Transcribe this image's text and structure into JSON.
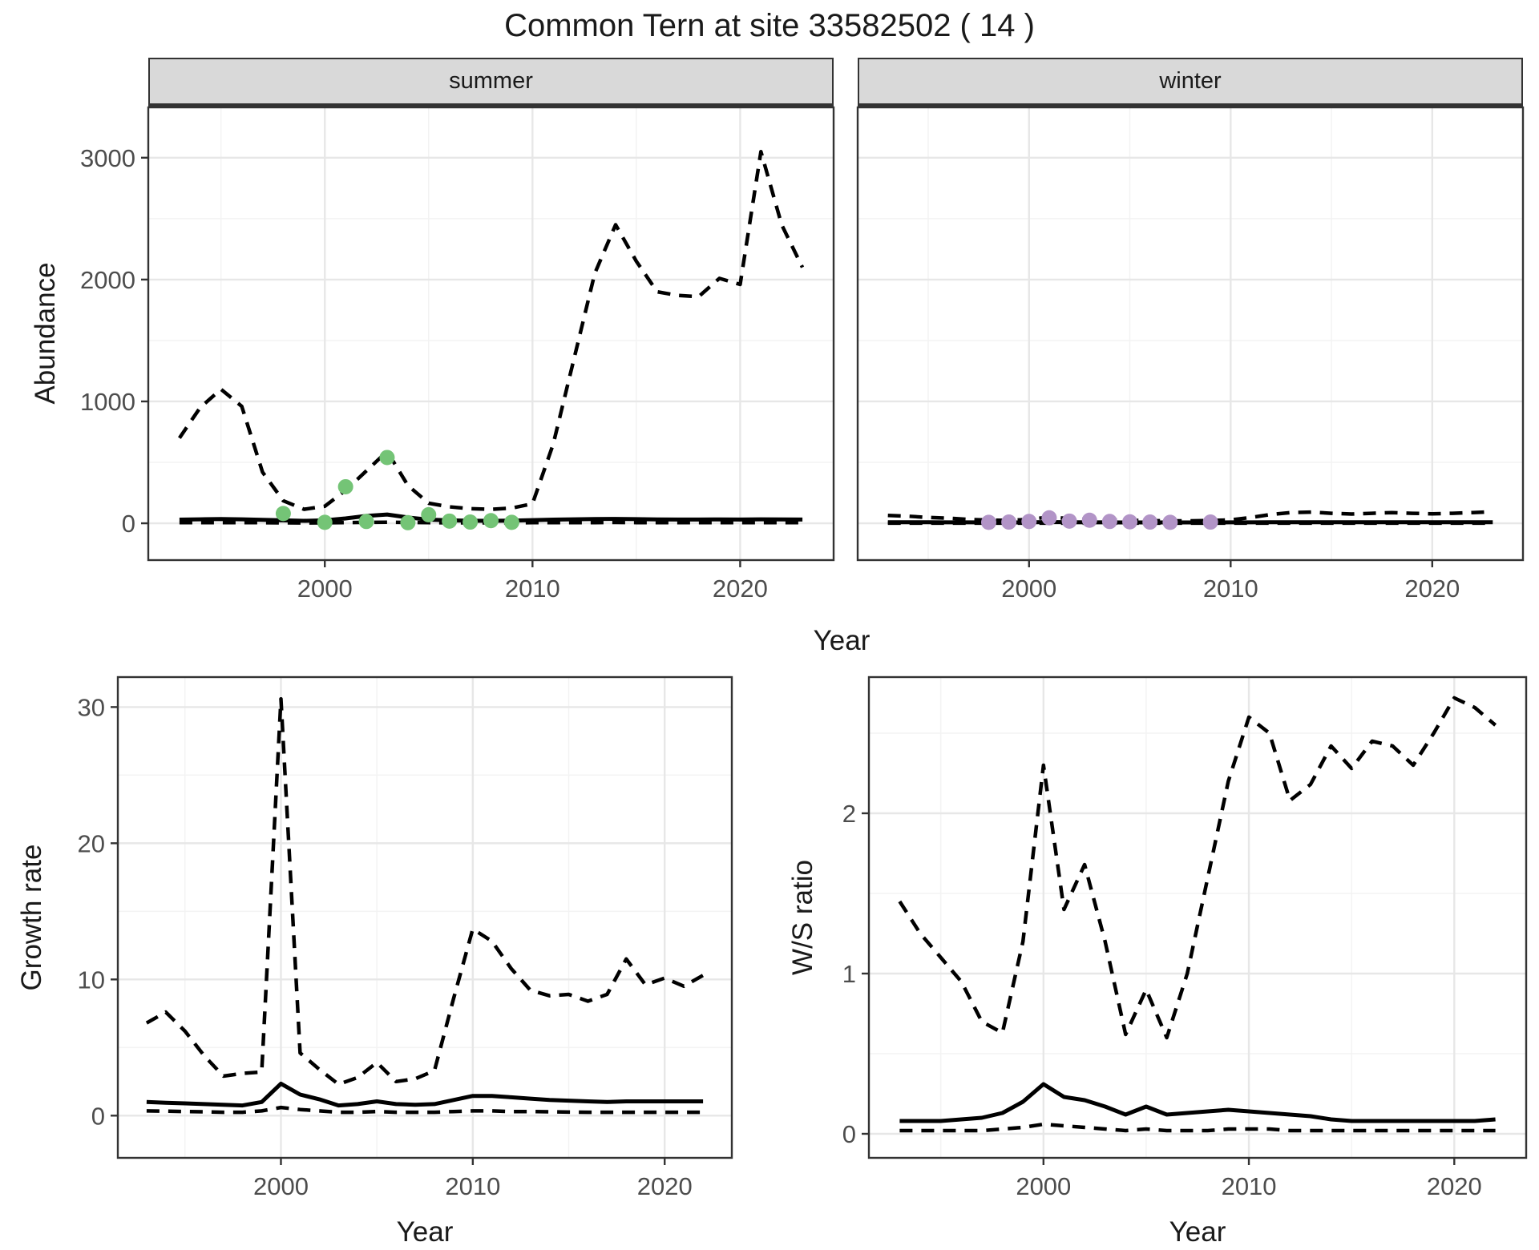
{
  "title": "Common Tern at site 33582502 ( 14 )",
  "colors": {
    "panel_bg": "#ffffff",
    "grid_major": "#e7e7e7",
    "grid_minor": "#f3f3f3",
    "panel_border": "#333333",
    "strip_bg": "#d9d9d9",
    "line": "#000000",
    "tick_text": "#4d4d4d",
    "summer_points": "#74c476",
    "winter_points": "#b294c7"
  },
  "chart_data": [
    {
      "id": "abundance-summer",
      "type": "line",
      "facet_label": "summer",
      "ylabel": "Abundance",
      "xlabel": "Year",
      "xlim": [
        1991.5,
        2024.5
      ],
      "ylim": [
        -302,
        3413
      ],
      "xtick_values": [
        2000,
        2010,
        2020
      ],
      "xtick_labels": [
        "2000",
        "2010",
        "2020"
      ],
      "ytick_values": [
        0,
        1000,
        2000,
        3000
      ],
      "ytick_labels": [
        "0",
        "1000",
        "2000",
        "3000"
      ],
      "x_minor": [
        1995,
        2005,
        2015
      ],
      "y_minor": [
        500,
        1500,
        2500
      ],
      "series": [
        {
          "name": "upper-ci",
          "type": "dashed",
          "x": [
            1993,
            1994,
            1995,
            1996,
            1997,
            1998,
            1999,
            2000,
            2001,
            2002,
            2003,
            2004,
            2005,
            2006,
            2007,
            2008,
            2009,
            2010,
            2011,
            2012,
            2013,
            2014,
            2015,
            2016,
            2017,
            2018,
            2019,
            2020,
            2021,
            2022,
            2023
          ],
          "y": [
            700,
            950,
            1100,
            960,
            420,
            185,
            115,
            140,
            270,
            430,
            590,
            310,
            165,
            135,
            120,
            115,
            125,
            160,
            650,
            1350,
            2050,
            2450,
            2150,
            1900,
            1870,
            1860,
            2010,
            1960,
            3050,
            2450,
            2100
          ]
        },
        {
          "name": "median",
          "type": "solid",
          "x": [
            1993,
            1994,
            1995,
            1996,
            1997,
            1998,
            1999,
            2000,
            2001,
            2002,
            2003,
            2004,
            2005,
            2006,
            2007,
            2008,
            2009,
            2010,
            2011,
            2012,
            2013,
            2014,
            2015,
            2016,
            2017,
            2018,
            2019,
            2020,
            2021,
            2022,
            2023
          ],
          "y": [
            30,
            33,
            35,
            33,
            28,
            24,
            20,
            24,
            40,
            60,
            72,
            48,
            30,
            24,
            21,
            20,
            22,
            26,
            30,
            33,
            35,
            36,
            34,
            32,
            31,
            31,
            32,
            31,
            33,
            32,
            31
          ]
        },
        {
          "name": "lower-ci",
          "type": "dashed",
          "x": [
            1993,
            1994,
            1995,
            1996,
            1997,
            1998,
            1999,
            2000,
            2001,
            2002,
            2003,
            2004,
            2005,
            2006,
            2007,
            2008,
            2009,
            2010,
            2011,
            2012,
            2013,
            2014,
            2015,
            2016,
            2017,
            2018,
            2019,
            2020,
            2021,
            2022,
            2023
          ],
          "y": [
            5,
            6,
            6,
            6,
            5,
            4,
            3,
            4,
            6,
            8,
            9,
            7,
            5,
            4,
            4,
            4,
            4,
            5,
            5,
            6,
            6,
            7,
            6,
            6,
            6,
            6,
            6,
            6,
            6,
            6,
            6
          ]
        },
        {
          "name": "observed-summer",
          "type": "points",
          "color": "#74c476",
          "x": [
            1998,
            2000,
            2001,
            2002,
            2003,
            2004,
            2005,
            2006,
            2007,
            2008,
            2009
          ],
          "y": [
            80,
            8,
            300,
            15,
            540,
            5,
            70,
            18,
            10,
            22,
            8
          ]
        }
      ]
    },
    {
      "id": "abundance-winter",
      "type": "line",
      "facet_label": "winter",
      "ylabel": null,
      "xlabel": "Year",
      "xlim": [
        1991.5,
        2024.5
      ],
      "ylim": [
        -302,
        3413
      ],
      "xtick_values": [
        2000,
        2010,
        2020
      ],
      "xtick_labels": [
        "2000",
        "2010",
        "2020"
      ],
      "ytick_values": [
        0,
        1000,
        2000,
        3000
      ],
      "ytick_labels": [
        "0",
        "1000",
        "2000",
        "3000"
      ],
      "x_minor": [
        1995,
        2005,
        2015
      ],
      "y_minor": [
        500,
        1500,
        2500
      ],
      "series": [
        {
          "name": "upper-ci",
          "type": "dashed",
          "x": [
            1993,
            1994,
            1995,
            1996,
            1997,
            1998,
            1999,
            2000,
            2001,
            2002,
            2003,
            2004,
            2005,
            2006,
            2007,
            2008,
            2009,
            2010,
            2011,
            2012,
            2013,
            2014,
            2015,
            2016,
            2017,
            2018,
            2019,
            2020,
            2021,
            2022,
            2023
          ],
          "y": [
            65,
            58,
            48,
            42,
            32,
            26,
            24,
            32,
            52,
            38,
            32,
            28,
            24,
            22,
            20,
            20,
            22,
            28,
            48,
            72,
            88,
            92,
            82,
            76,
            82,
            88,
            82,
            78,
            82,
            88,
            95
          ]
        },
        {
          "name": "median",
          "type": "solid",
          "x": [
            1993,
            1994,
            1995,
            1996,
            1997,
            1998,
            1999,
            2000,
            2001,
            2002,
            2003,
            2004,
            2005,
            2006,
            2007,
            2008,
            2009,
            2010,
            2011,
            2012,
            2013,
            2014,
            2015,
            2016,
            2017,
            2018,
            2019,
            2020,
            2021,
            2022,
            2023
          ],
          "y": [
            9,
            9,
            9,
            8,
            8,
            7,
            7,
            8,
            10,
            9,
            8,
            8,
            7,
            7,
            7,
            7,
            7,
            8,
            8,
            9,
            9,
            9,
            9,
            9,
            9,
            9,
            9,
            9,
            9,
            9,
            9
          ]
        },
        {
          "name": "lower-ci",
          "type": "dashed",
          "x": [
            1993,
            1994,
            1995,
            1996,
            1997,
            1998,
            1999,
            2000,
            2001,
            2002,
            2003,
            2004,
            2005,
            2006,
            2007,
            2008,
            2009,
            2010,
            2011,
            2012,
            2013,
            2014,
            2015,
            2016,
            2017,
            2018,
            2019,
            2020,
            2021,
            2022,
            2023
          ],
          "y": [
            1,
            1,
            1,
            1,
            1,
            1,
            1,
            1,
            1,
            1,
            1,
            1,
            1,
            1,
            1,
            1,
            1,
            1,
            1,
            1,
            1,
            1,
            1,
            1,
            1,
            1,
            1,
            1,
            1,
            1,
            1
          ]
        },
        {
          "name": "observed-winter",
          "type": "points",
          "color": "#b294c7",
          "x": [
            1998,
            1999,
            2000,
            2001,
            2002,
            2003,
            2004,
            2005,
            2006,
            2007,
            2009
          ],
          "y": [
            8,
            10,
            15,
            45,
            18,
            25,
            15,
            12,
            10,
            8,
            10
          ]
        }
      ]
    },
    {
      "id": "growth-rate",
      "type": "line",
      "facet_label": null,
      "ylabel": "Growth rate",
      "xlabel": "Year",
      "xlim": [
        1991.5,
        2023.5
      ],
      "ylim": [
        -3.1,
        32.2
      ],
      "xtick_values": [
        2000,
        2010,
        2020
      ],
      "xtick_labels": [
        "2000",
        "2010",
        "2020"
      ],
      "ytick_values": [
        0,
        10,
        20,
        30
      ],
      "ytick_labels": [
        "0",
        "10",
        "20",
        "30"
      ],
      "x_minor": [
        1995,
        2005,
        2015
      ],
      "y_minor": [
        5,
        15,
        25
      ],
      "series": [
        {
          "name": "upper-ci",
          "type": "dashed",
          "x": [
            1993,
            1994,
            1995,
            1996,
            1997,
            1998,
            1999,
            2000,
            2001,
            2002,
            2003,
            2004,
            2005,
            2006,
            2007,
            2008,
            2009,
            2010,
            2011,
            2012,
            2013,
            2014,
            2015,
            2016,
            2017,
            2018,
            2019,
            2020,
            2021,
            2022
          ],
          "y": [
            6.8,
            7.6,
            6.2,
            4.4,
            2.9,
            3.1,
            3.2,
            30.6,
            4.6,
            3.4,
            2.3,
            2.8,
            3.9,
            2.5,
            2.7,
            3.3,
            8.6,
            13.7,
            12.8,
            10.8,
            9.2,
            8.8,
            8.9,
            8.4,
            8.9,
            11.5,
            9.6,
            10.1,
            9.5,
            10.3
          ]
        },
        {
          "name": "median",
          "type": "solid",
          "x": [
            1993,
            1994,
            1995,
            1996,
            1997,
            1998,
            1999,
            2000,
            2001,
            2002,
            2003,
            2004,
            2005,
            2006,
            2007,
            2008,
            2009,
            2010,
            2011,
            2012,
            2013,
            2014,
            2015,
            2016,
            2017,
            2018,
            2019,
            2020,
            2021,
            2022
          ],
          "y": [
            1.0,
            0.95,
            0.9,
            0.85,
            0.8,
            0.75,
            1.0,
            2.35,
            1.55,
            1.2,
            0.75,
            0.85,
            1.05,
            0.85,
            0.8,
            0.85,
            1.15,
            1.45,
            1.45,
            1.35,
            1.25,
            1.15,
            1.1,
            1.05,
            1.0,
            1.05,
            1.05,
            1.05,
            1.05,
            1.05
          ]
        },
        {
          "name": "lower-ci",
          "type": "dashed",
          "x": [
            1993,
            1994,
            1995,
            1996,
            1997,
            1998,
            1999,
            2000,
            2001,
            2002,
            2003,
            2004,
            2005,
            2006,
            2007,
            2008,
            2009,
            2010,
            2011,
            2012,
            2013,
            2014,
            2015,
            2016,
            2017,
            2018,
            2019,
            2020,
            2021,
            2022
          ],
          "y": [
            0.35,
            0.33,
            0.3,
            0.28,
            0.25,
            0.25,
            0.35,
            0.6,
            0.45,
            0.35,
            0.25,
            0.25,
            0.3,
            0.25,
            0.25,
            0.25,
            0.3,
            0.35,
            0.35,
            0.3,
            0.3,
            0.28,
            0.26,
            0.25,
            0.25,
            0.25,
            0.25,
            0.25,
            0.25,
            0.25
          ]
        }
      ]
    },
    {
      "id": "ws-ratio",
      "type": "line",
      "facet_label": null,
      "ylabel": "W/S ratio",
      "xlabel": "Year",
      "xlim": [
        1991.5,
        2023.5
      ],
      "ylim": [
        -0.15,
        2.85
      ],
      "xtick_values": [
        2000,
        2010,
        2020
      ],
      "xtick_labels": [
        "2000",
        "2010",
        "2020"
      ],
      "ytick_values": [
        0,
        1,
        2
      ],
      "ytick_labels": [
        "0",
        "1",
        "2"
      ],
      "x_minor": [
        1995,
        2005,
        2015
      ],
      "y_minor": [
        0.5,
        1.5,
        2.5
      ],
      "series": [
        {
          "name": "upper-ci",
          "type": "dashed",
          "x": [
            1993,
            1994,
            1995,
            1996,
            1997,
            1998,
            1999,
            2000,
            2001,
            2002,
            2003,
            2004,
            2005,
            2006,
            2007,
            2008,
            2009,
            2010,
            2011,
            2012,
            2013,
            2014,
            2015,
            2016,
            2017,
            2018,
            2019,
            2020,
            2021,
            2022
          ],
          "y": [
            1.45,
            1.25,
            1.1,
            0.95,
            0.7,
            0.63,
            1.2,
            2.3,
            1.4,
            1.68,
            1.2,
            0.62,
            0.9,
            0.6,
            1.0,
            1.6,
            2.2,
            2.6,
            2.5,
            2.08,
            2.18,
            2.42,
            2.28,
            2.45,
            2.42,
            2.3,
            2.5,
            2.72,
            2.66,
            2.55
          ]
        },
        {
          "name": "median",
          "type": "solid",
          "x": [
            1993,
            1994,
            1995,
            1996,
            1997,
            1998,
            1999,
            2000,
            2001,
            2002,
            2003,
            2004,
            2005,
            2006,
            2007,
            2008,
            2009,
            2010,
            2011,
            2012,
            2013,
            2014,
            2015,
            2016,
            2017,
            2018,
            2019,
            2020,
            2021,
            2022
          ],
          "y": [
            0.08,
            0.08,
            0.08,
            0.09,
            0.1,
            0.13,
            0.2,
            0.31,
            0.23,
            0.21,
            0.17,
            0.12,
            0.17,
            0.12,
            0.13,
            0.14,
            0.15,
            0.14,
            0.13,
            0.12,
            0.11,
            0.09,
            0.08,
            0.08,
            0.08,
            0.08,
            0.08,
            0.08,
            0.08,
            0.09
          ]
        },
        {
          "name": "lower-ci",
          "type": "dashed",
          "x": [
            1993,
            1994,
            1995,
            1996,
            1997,
            1998,
            1999,
            2000,
            2001,
            2002,
            2003,
            2004,
            2005,
            2006,
            2007,
            2008,
            2009,
            2010,
            2011,
            2012,
            2013,
            2014,
            2015,
            2016,
            2017,
            2018,
            2019,
            2020,
            2021,
            2022
          ],
          "y": [
            0.02,
            0.02,
            0.02,
            0.02,
            0.02,
            0.03,
            0.04,
            0.06,
            0.05,
            0.04,
            0.03,
            0.02,
            0.03,
            0.02,
            0.02,
            0.02,
            0.03,
            0.03,
            0.03,
            0.02,
            0.02,
            0.02,
            0.02,
            0.02,
            0.02,
            0.02,
            0.02,
            0.02,
            0.02,
            0.02
          ]
        }
      ]
    }
  ]
}
